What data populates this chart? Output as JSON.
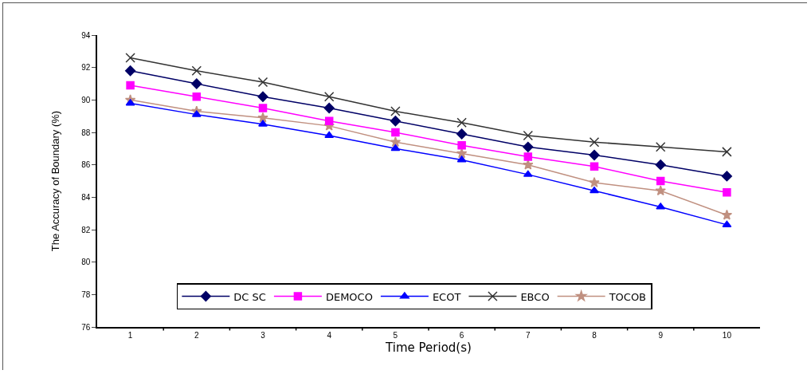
{
  "chart_data": {
    "type": "line",
    "xlabel": "Time Period(s)",
    "ylabel": "The Accuracy of Boundary (%)",
    "categories": [
      "1",
      "2",
      "3",
      "4",
      "5",
      "6",
      "7",
      "8",
      "9",
      "10"
    ],
    "ylim": [
      76,
      94
    ],
    "yticks": [
      76,
      78,
      80,
      82,
      84,
      86,
      88,
      90,
      92,
      94
    ],
    "grid": false,
    "legend": "bottom",
    "line_style": "solid",
    "series": [
      {
        "name": "DC SC",
        "color": "#000066",
        "marker": "diamond",
        "values": [
          91.8,
          91.0,
          90.2,
          89.5,
          88.7,
          87.9,
          87.1,
          86.6,
          86.0,
          85.3
        ]
      },
      {
        "name": "DEMOCO",
        "color": "#ff00ff",
        "marker": "square",
        "values": [
          90.9,
          90.2,
          89.5,
          88.7,
          88.0,
          87.2,
          86.5,
          85.9,
          85.0,
          84.3
        ]
      },
      {
        "name": "ECOT",
        "color": "#0000ff",
        "marker": "triangle",
        "values": [
          89.8,
          89.1,
          88.5,
          87.8,
          87.0,
          86.3,
          85.4,
          84.4,
          83.4,
          82.3
        ]
      },
      {
        "name": "EBCO",
        "color": "#333333",
        "marker": "cross",
        "values": [
          92.6,
          91.8,
          91.1,
          90.2,
          89.3,
          88.6,
          87.8,
          87.4,
          87.1,
          86.8
        ]
      },
      {
        "name": "TOCOB",
        "color": "#c09080",
        "marker": "star",
        "values": [
          90.0,
          89.3,
          88.9,
          88.4,
          87.4,
          86.7,
          86.0,
          84.9,
          84.4,
          82.9
        ]
      }
    ]
  }
}
